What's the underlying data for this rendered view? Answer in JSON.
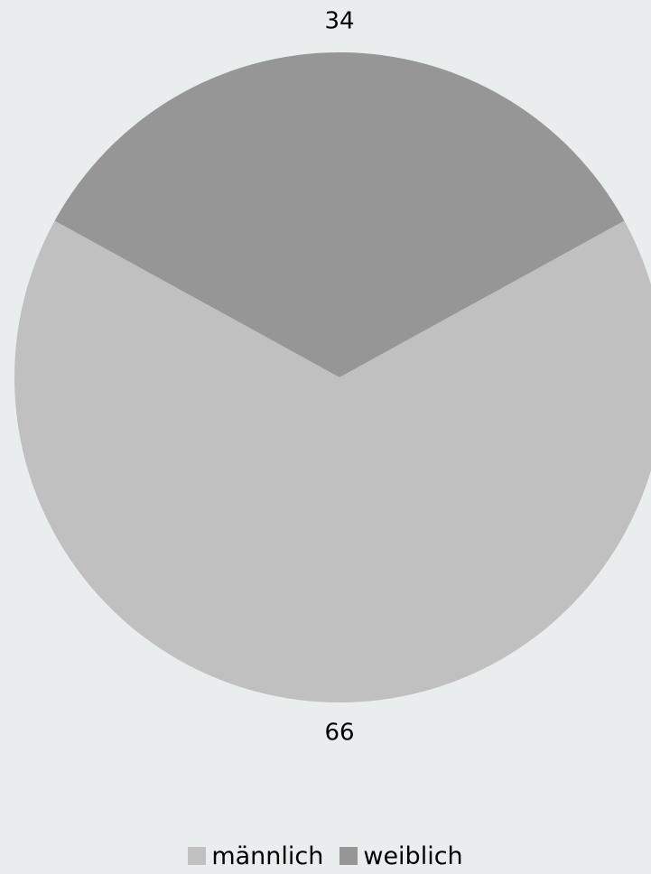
{
  "chart_data": {
    "type": "pie",
    "categories": [
      "männlich",
      "weiblich"
    ],
    "values": [
      66,
      34
    ],
    "value_labels": [
      "66",
      "34"
    ],
    "colors": [
      "#c0c0c0",
      "#969696"
    ],
    "legend_placement": "bottom-center"
  },
  "legend": {
    "items": [
      {
        "label": "männlich",
        "color": "#c0c0c0"
      },
      {
        "label": "weiblich",
        "color": "#969696"
      }
    ]
  }
}
